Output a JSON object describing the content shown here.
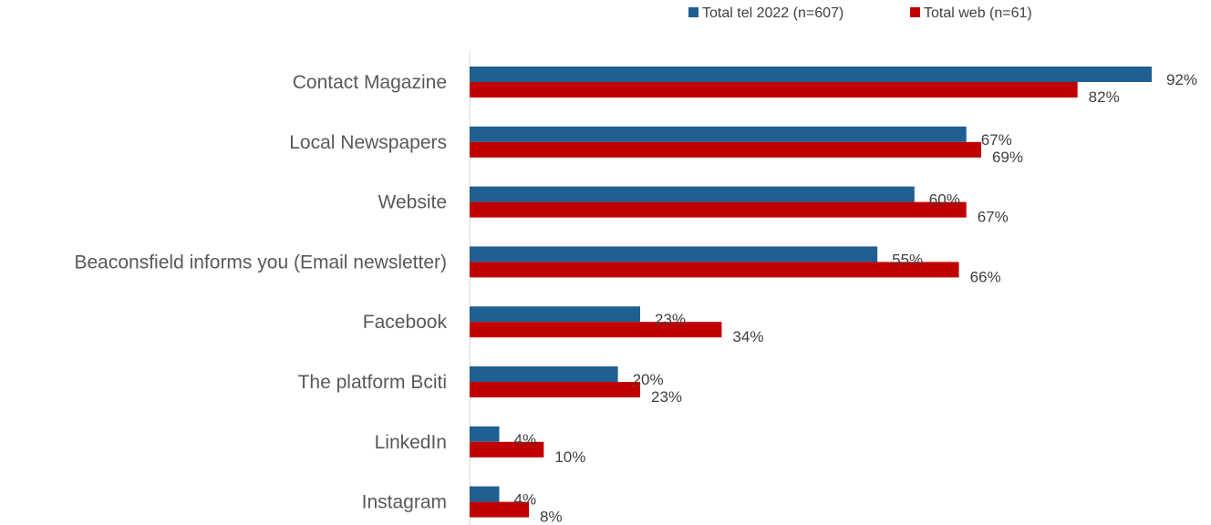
{
  "chart_data": {
    "type": "bar",
    "orientation": "horizontal",
    "categories": [
      "Contact Magazine",
      "Local Newspapers",
      "Website",
      "Beaconsfield informs you (Email newsletter)",
      "Facebook",
      "The platform Bciti",
      "LinkedIn",
      "Instagram"
    ],
    "series": [
      {
        "name": "Total tel 2022 (n=607)",
        "color": "#1f5f91",
        "values": [
          92,
          67,
          60,
          55,
          23,
          20,
          4,
          4
        ],
        "labels": [
          "92%",
          "67%",
          "60%",
          "55%",
          "23%",
          "20%",
          "4%",
          "4%"
        ]
      },
      {
        "name": "Total web (n=61)",
        "color": "#c00000",
        "values": [
          82,
          69,
          67,
          66,
          34,
          23,
          10,
          8
        ],
        "labels": [
          "82%",
          "69%",
          "67%",
          "66%",
          "34%",
          "23%",
          "10%",
          "8%"
        ]
      }
    ],
    "unit": "%",
    "xlim": [
      0,
      100
    ],
    "grid": false,
    "legend_position": "top-right"
  }
}
